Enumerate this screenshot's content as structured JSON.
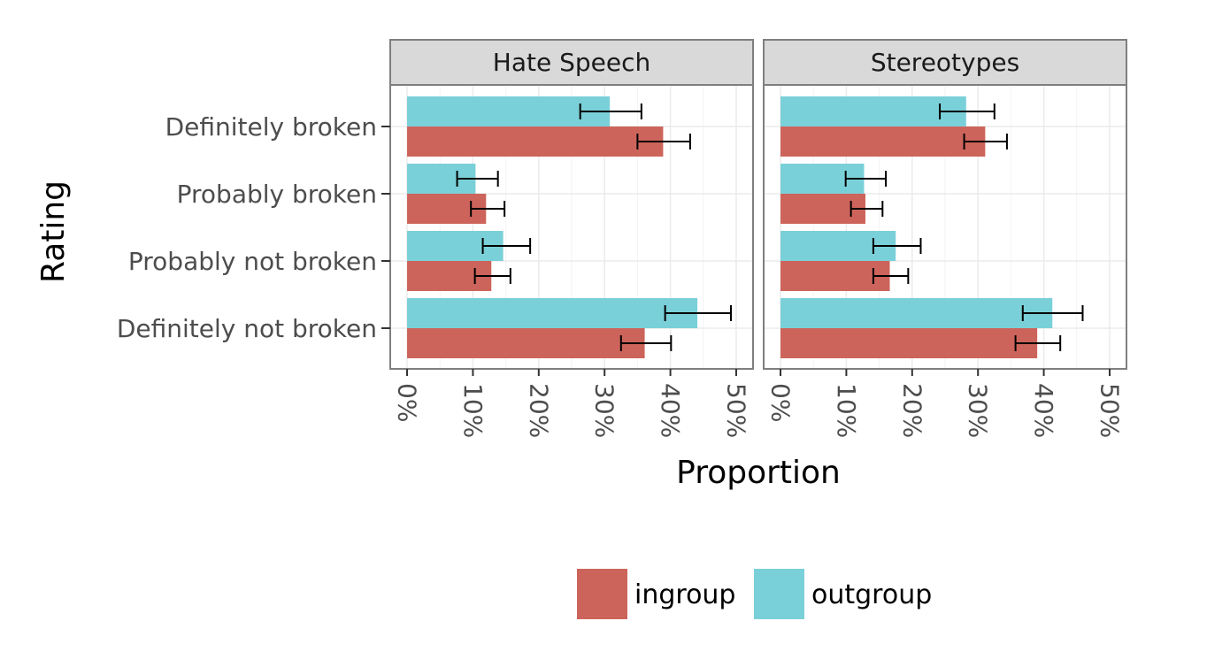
{
  "chart_data": {
    "type": "bar",
    "orientation": "horizontal",
    "facet_layout": "columns",
    "xlabel": "Proportion",
    "ylabel": "Rating",
    "xlim": [
      0,
      0.5
    ],
    "x_ticks": [
      0,
      0.1,
      0.2,
      0.3,
      0.4,
      0.5
    ],
    "x_tick_labels": [
      "0%",
      "10%",
      "20%",
      "30%",
      "40%",
      "50%"
    ],
    "x_tick_rotation": "vertical",
    "categories": [
      "Definitely broken",
      "Probably broken",
      "Probably not broken",
      "Definitely not broken"
    ],
    "grid": true,
    "error_bars": true,
    "legend": {
      "position": "bottom",
      "entries": [
        "ingroup",
        "outgroup"
      ]
    },
    "colors": {
      "ingroup": "#cd645b",
      "outgroup": "#7ad0d8"
    },
    "facets": [
      {
        "title": "Hate Speech",
        "series": [
          {
            "name": "outgroup",
            "values": [
              0.308,
              0.104,
              0.146,
              0.441
            ],
            "ci_low": [
              0.263,
              0.076,
              0.115,
              0.392
            ],
            "ci_high": [
              0.356,
              0.138,
              0.187,
              0.492
            ]
          },
          {
            "name": "ingroup",
            "values": [
              0.389,
              0.12,
              0.128,
              0.361
            ],
            "ci_low": [
              0.35,
              0.097,
              0.103,
              0.325
            ],
            "ci_high": [
              0.43,
              0.148,
              0.157,
              0.401
            ]
          }
        ]
      },
      {
        "title": "Stereotypes",
        "series": [
          {
            "name": "outgroup",
            "values": [
              0.282,
              0.127,
              0.175,
              0.413
            ],
            "ci_low": [
              0.242,
              0.099,
              0.141,
              0.368
            ],
            "ci_high": [
              0.325,
              0.16,
              0.213,
              0.459
            ]
          },
          {
            "name": "ingroup",
            "values": [
              0.311,
              0.129,
              0.166,
              0.39
            ],
            "ci_low": [
              0.279,
              0.107,
              0.141,
              0.357
            ],
            "ci_high": [
              0.344,
              0.155,
              0.194,
              0.425
            ]
          }
        ]
      }
    ]
  }
}
